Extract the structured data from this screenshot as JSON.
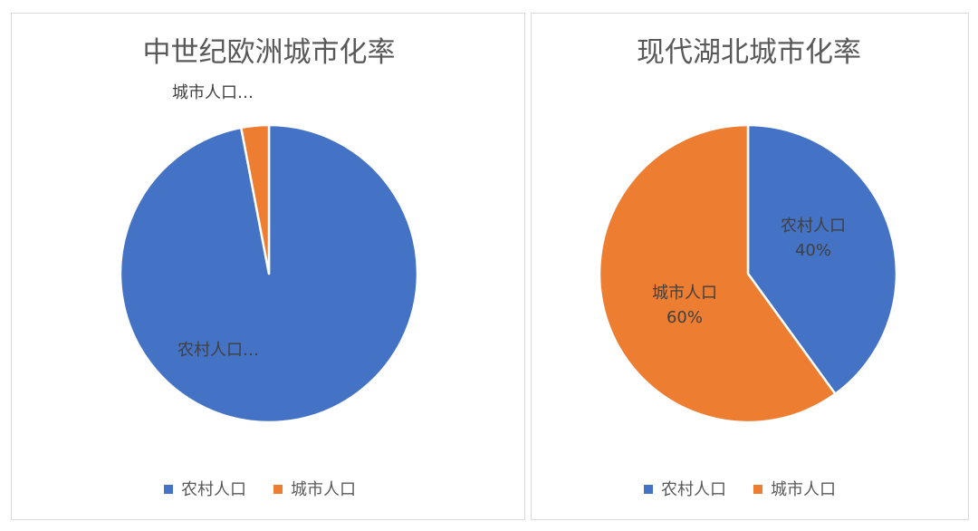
{
  "chart_data": [
    {
      "type": "pie",
      "title": "中世纪欧洲城市化率",
      "series": [
        {
          "name": "",
          "categories": [
            "农村人口",
            "城市人口"
          ],
          "values": [
            97,
            3
          ]
        }
      ],
      "categories": [
        "农村人口",
        "城市人口"
      ],
      "values": [
        97,
        3
      ],
      "data_labels": [
        "农村人口…",
        "城市人口…"
      ],
      "colors": [
        "#4472C4",
        "#ED7D31"
      ],
      "legend": {
        "position": "bottom",
        "entries": [
          "农村人口",
          "城市人口"
        ]
      }
    },
    {
      "type": "pie",
      "title": "现代湖北城市化率",
      "categories": [
        "农村人口",
        "城市人口"
      ],
      "values": [
        40,
        60
      ],
      "data_labels": [
        {
          "name": "农村人口",
          "value": "40%"
        },
        {
          "name": "城市人口",
          "value": "60%"
        }
      ],
      "colors": [
        "#4472C4",
        "#ED7D31"
      ],
      "legend": {
        "position": "bottom",
        "entries": [
          "农村人口",
          "城市人口"
        ]
      }
    }
  ]
}
